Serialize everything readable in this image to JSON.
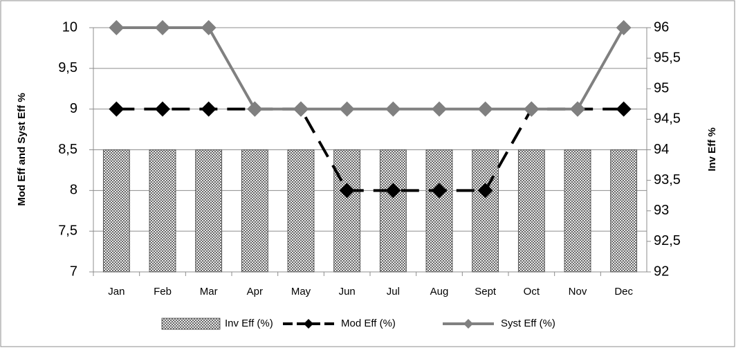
{
  "chart_data": {
    "type": "bar",
    "categories": [
      "Jan",
      "Feb",
      "Mar",
      "Apr",
      "May",
      "Jun",
      "Jul",
      "Aug",
      "Sept",
      "Oct",
      "Nov",
      "Dec"
    ],
    "series": [
      {
        "name": "Inv Eff (%)",
        "type": "bar",
        "axis": "y2",
        "color": "#808080",
        "values": [
          94,
          94,
          94,
          94,
          94,
          94,
          94,
          94,
          94,
          94,
          94,
          94
        ]
      },
      {
        "name": "Mod Eff (%)",
        "type": "line",
        "dashed": true,
        "color": "#000000",
        "values": [
          9,
          9,
          9,
          9,
          9,
          8,
          8,
          8,
          8,
          9,
          9,
          9
        ]
      },
      {
        "name": "Syst Eff (%)",
        "type": "line",
        "dashed": false,
        "color": "#808080",
        "values": [
          10,
          10,
          10,
          9,
          9,
          9,
          9,
          9,
          9,
          9,
          9,
          10
        ]
      }
    ],
    "y_label": "Mod Eff and Syst Eff %",
    "y2_label": "Inv Eff %",
    "ylim": [
      7,
      10
    ],
    "yticks": [
      7,
      {
        "value": 7.5,
        "label": "7,5"
      },
      8,
      {
        "value": 8.5,
        "label": "8,5"
      },
      9,
      {
        "value": 9.5,
        "label": "9,5"
      },
      10
    ],
    "y2lim": [
      92,
      96
    ],
    "y2ticks": [
      92,
      {
        "value": 92.5,
        "label": "92,5"
      },
      93,
      {
        "value": 93.5,
        "label": "93,5"
      },
      94,
      {
        "value": 94.5,
        "label": "94,5"
      },
      95,
      {
        "value": 95.5,
        "label": "95,5"
      },
      96
    ],
    "grid": true,
    "legend": "bottom"
  }
}
